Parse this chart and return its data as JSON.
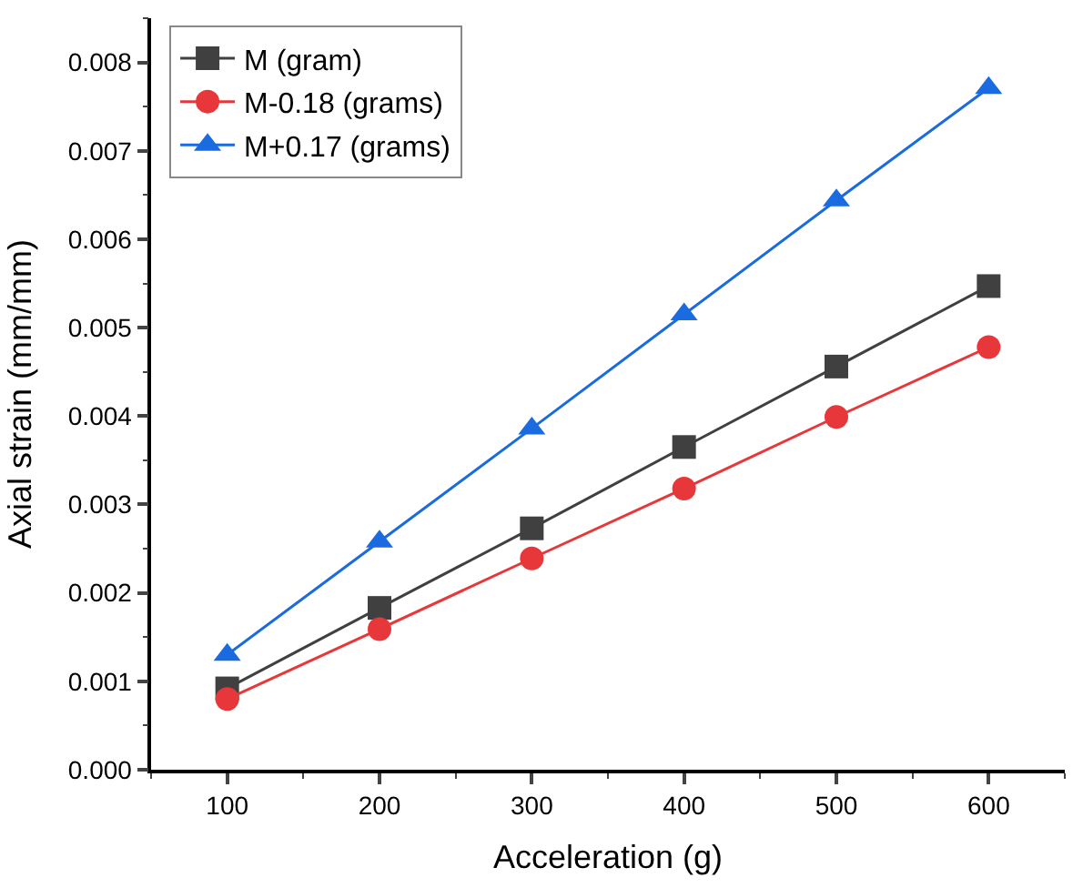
{
  "chart_data": {
    "type": "line",
    "xlabel": "Acceleration (g)",
    "ylabel": "Axial strain (mm/mm)",
    "x": [
      100,
      200,
      300,
      400,
      500,
      600
    ],
    "series": [
      {
        "name": "M (gram)",
        "color": "#404040",
        "marker": "square",
        "values": [
          0.00092,
          0.00183,
          0.00273,
          0.00365,
          0.00456,
          0.00547
        ]
      },
      {
        "name": "M-0.18 (grams)",
        "color": "#e8373a",
        "marker": "circle",
        "values": [
          0.0008,
          0.00159,
          0.00239,
          0.00318,
          0.00399,
          0.00478
        ]
      },
      {
        "name": "M+0.17 (grams)",
        "color": "#1a6be0",
        "marker": "triangle",
        "values": [
          0.0013,
          0.00258,
          0.00386,
          0.00515,
          0.00644,
          0.00771
        ]
      }
    ],
    "xlim": [
      50,
      650
    ],
    "xticks": [
      100,
      200,
      300,
      400,
      500,
      600
    ],
    "ylim": [
      0,
      0.0085
    ],
    "yticks": [
      {
        "value": 0,
        "label": "0.000"
      },
      {
        "value": 0.001,
        "label": "0.001"
      },
      {
        "value": 0.002,
        "label": "0.002"
      },
      {
        "value": 0.003,
        "label": "0.003"
      },
      {
        "value": 0.004,
        "label": "0.004"
      },
      {
        "value": 0.005,
        "label": "0.005"
      },
      {
        "value": 0.006,
        "label": "0.006"
      },
      {
        "value": 0.007,
        "label": "0.007"
      },
      {
        "value": 0.008,
        "label": "0.008"
      }
    ],
    "legend": "top left",
    "line_style": "solid"
  }
}
